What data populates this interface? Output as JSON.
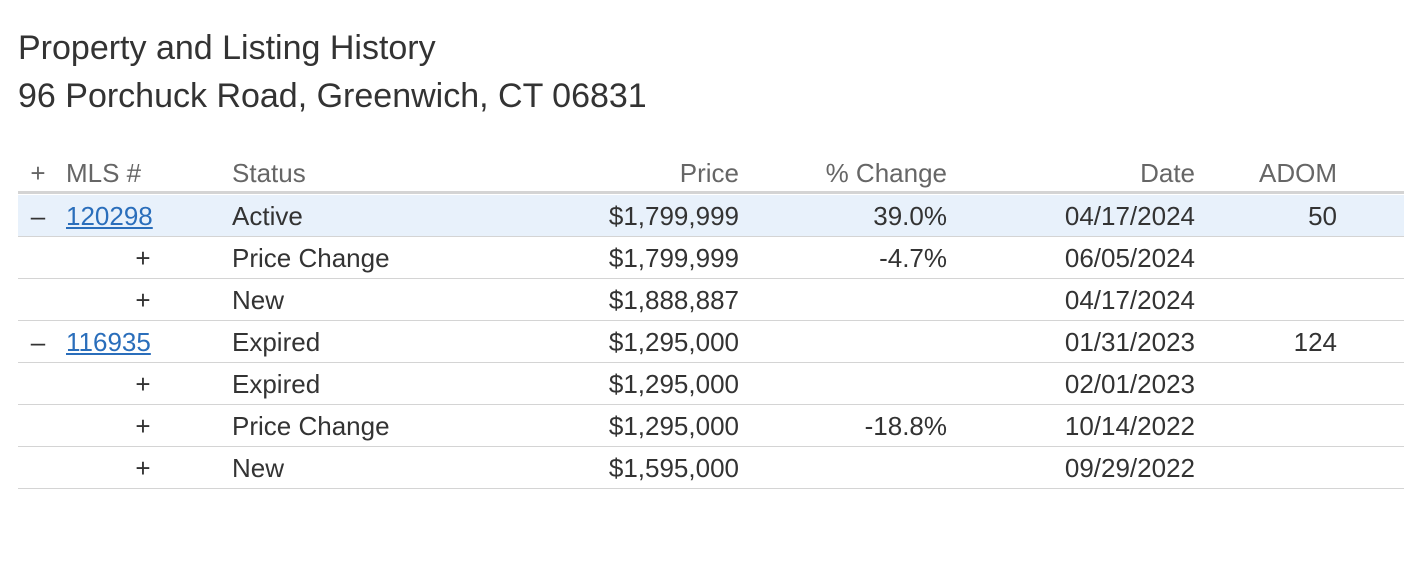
{
  "header": {
    "title": "Property and Listing History",
    "address": "96 Porchuck Road, Greenwich, CT 06831"
  },
  "table": {
    "columns": [
      "+",
      "MLS #",
      "Status",
      "Price",
      "% Change",
      "Date",
      "ADOM"
    ],
    "rows": [
      {
        "toggle": "–",
        "mls": "120298",
        "status": "Active",
        "price": "$1,799,999",
        "change": "39.0%",
        "date": "04/17/2024",
        "adom": "50"
      },
      {
        "toggle": "+",
        "status": "Price Change",
        "price": "$1,799,999",
        "change": "-4.7%",
        "date": "06/05/2024"
      },
      {
        "toggle": "+",
        "status": "New",
        "price": "$1,888,887",
        "date": "04/17/2024"
      },
      {
        "toggle": "–",
        "mls": "116935",
        "status": "Expired",
        "price": "$1,295,000",
        "date": "01/31/2023",
        "adom": "124"
      },
      {
        "toggle": "+",
        "status": "Expired",
        "price": "$1,295,000",
        "date": "02/01/2023"
      },
      {
        "toggle": "+",
        "status": "Price Change",
        "price": "$1,295,000",
        "change": "-18.8%",
        "date": "10/14/2022"
      },
      {
        "toggle": "+",
        "status": "New",
        "price": "$1,595,000",
        "date": "09/29/2022"
      }
    ]
  }
}
